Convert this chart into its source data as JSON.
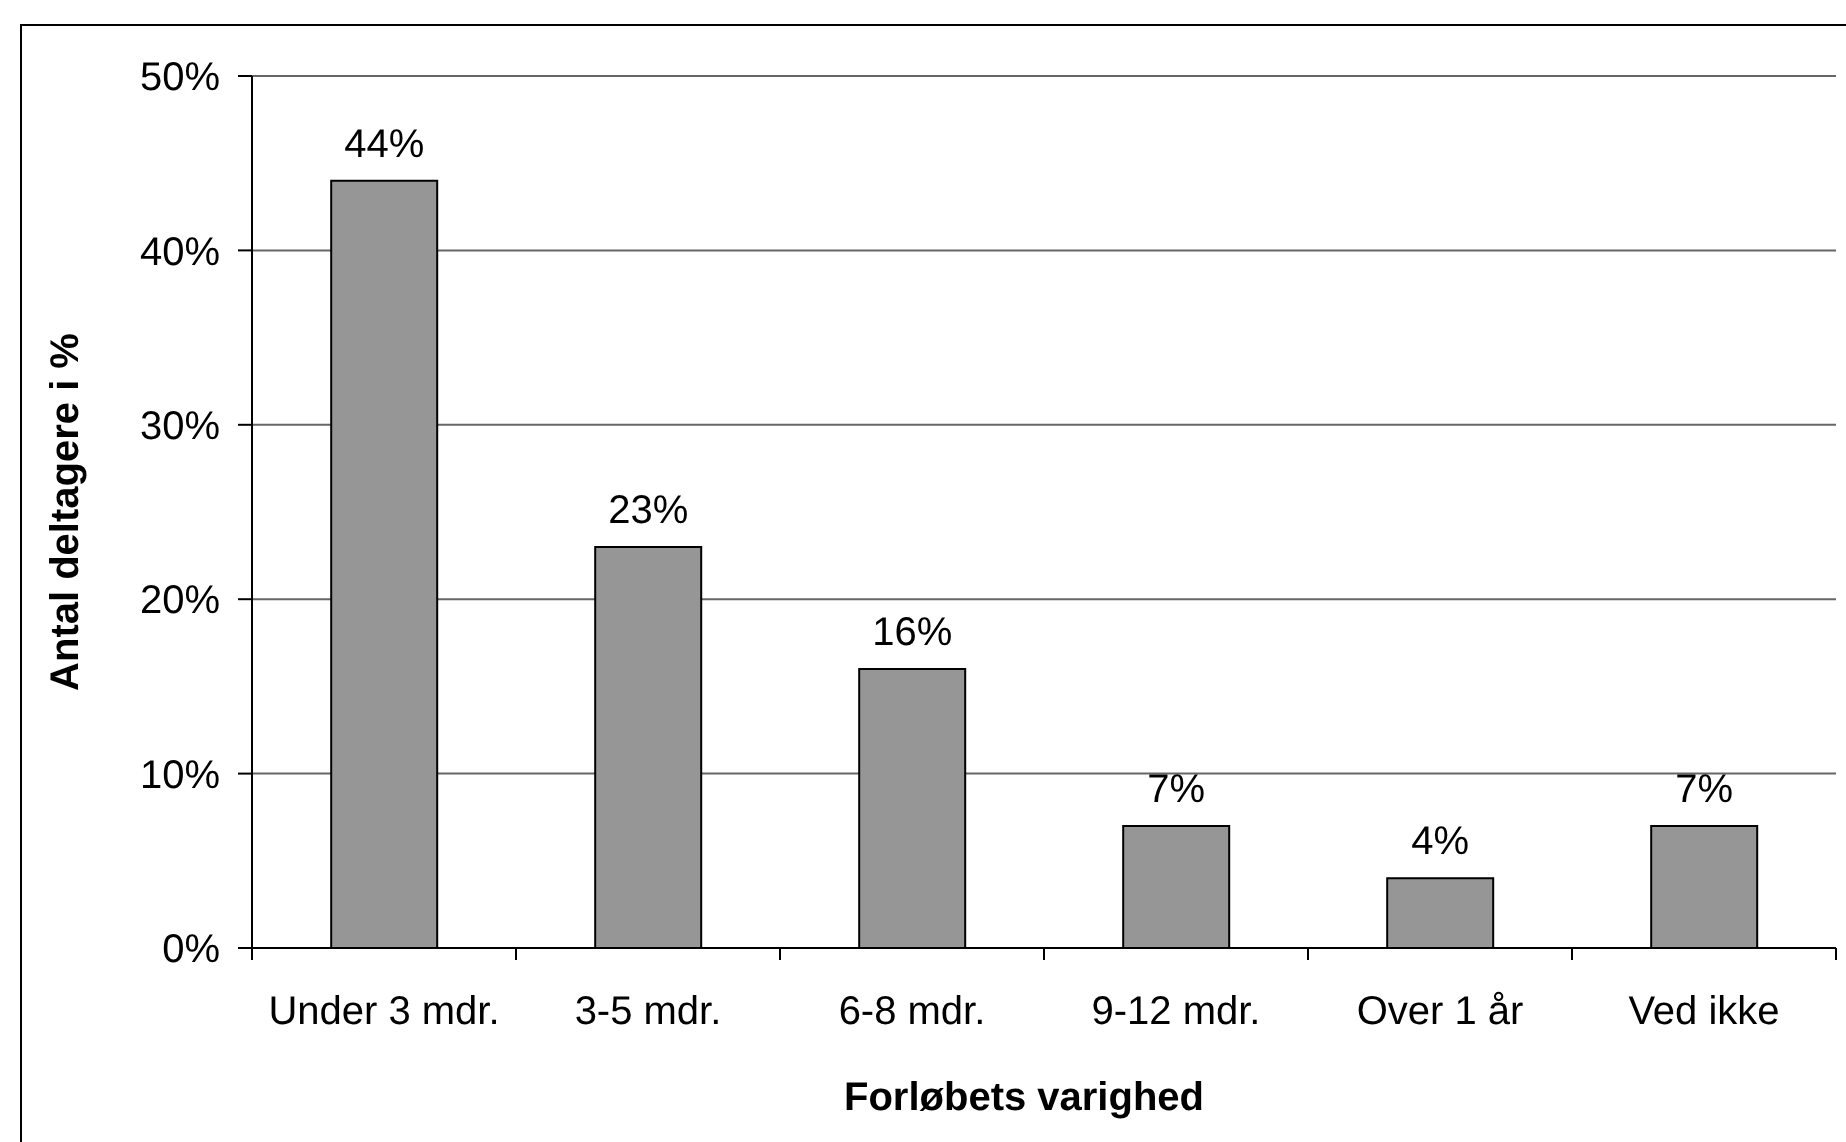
{
  "chart_data": {
    "type": "bar",
    "xlabel": "Forløbets varighed",
    "ylabel": "Antal deltagere i %",
    "categories": [
      "Under 3 mdr.",
      "3-5 mdr.",
      "6-8 mdr.",
      "9-12 mdr.",
      "Over 1 år",
      "Ved ikke"
    ],
    "values": [
      44,
      23,
      16,
      7,
      4,
      7
    ],
    "value_labels": [
      "44%",
      "23%",
      "16%",
      "7%",
      "4%",
      "7%"
    ],
    "color": "#969696",
    "ylim": [
      0,
      50
    ],
    "yticks": [
      {
        "value": 0,
        "label": "0%"
      },
      {
        "value": 10,
        "label": "10%"
      },
      {
        "value": 20,
        "label": "20%"
      },
      {
        "value": 30,
        "label": "30%"
      },
      {
        "value": 40,
        "label": "40%"
      },
      {
        "value": 50,
        "label": "50%"
      }
    ],
    "grid": "y"
  }
}
